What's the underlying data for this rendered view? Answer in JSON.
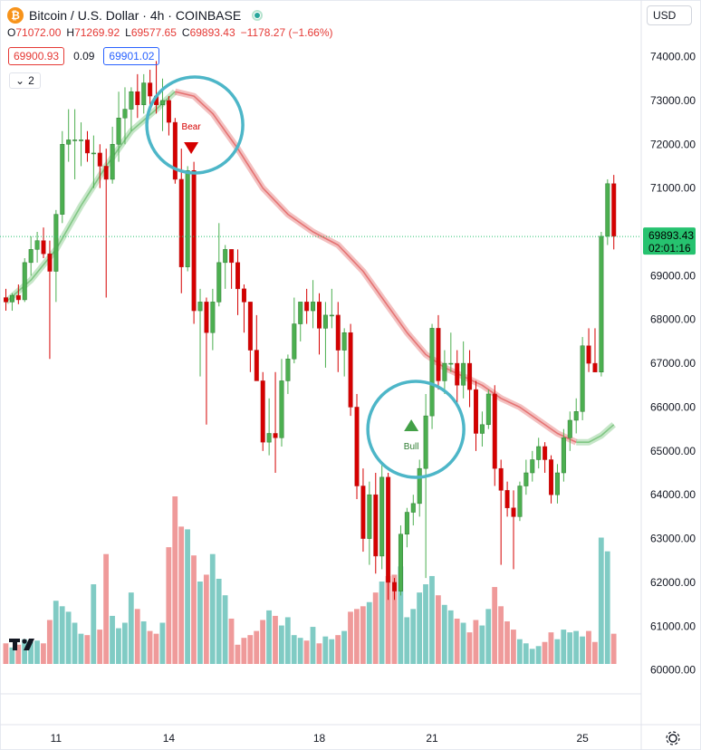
{
  "header": {
    "symbol_title": "Bitcoin / U.S. Dollar · 4h · COINBASE",
    "logo_glyph": "₿"
  },
  "ohlc": {
    "open_label": "O",
    "open": "71072.00",
    "high_label": "H",
    "high": "71269.92",
    "low_label": "L",
    "low": "69577.65",
    "close_label": "C",
    "close": "69893.43",
    "change": "−1178.27 (−1.66%)"
  },
  "quote": {
    "sell": "69900.93",
    "spread": "0.09",
    "buy": "69901.02"
  },
  "indicators_toggle": {
    "chevron": "⌄",
    "count": "2"
  },
  "currency_select": {
    "selected": "USD",
    "arrow": "▾"
  },
  "price_badge": {
    "price": "69893.43",
    "countdown": "02:01:16"
  },
  "signals": {
    "bear_label": "Bear",
    "bull_label": "Bull"
  },
  "colors": {
    "up": "#4caf50",
    "down": "#d50000",
    "up_volume": "#80cbc4",
    "down_volume": "#ef9a9a",
    "ma_bull": "#81c784",
    "ma_bear": "#e57373",
    "circle": "#4db6c8",
    "last_price": "#26c26f"
  },
  "chart_data": {
    "type": "candlestick",
    "y_ticks": [
      "74000.00",
      "73000.00",
      "72000.00",
      "71000.00",
      "70000.00",
      "69000.00",
      "68000.00",
      "67000.00",
      "66000.00",
      "65000.00",
      "64000.00",
      "63000.00",
      "62000.00",
      "61000.00",
      "60000.00"
    ],
    "ylim": [
      59600,
      74900
    ],
    "x_ticks": [
      {
        "label": "11",
        "index": 8
      },
      {
        "label": "14",
        "index": 26
      },
      {
        "label": "18",
        "index": 50
      },
      {
        "label": "21",
        "index": 68
      },
      {
        "label": "25",
        "index": 92
      }
    ],
    "candles": [
      {
        "o": 68500,
        "h": 68700,
        "l": 68200,
        "c": 68400,
        "v": 150
      },
      {
        "o": 68400,
        "h": 68600,
        "l": 68200,
        "c": 68550,
        "v": 120
      },
      {
        "o": 68550,
        "h": 68800,
        "l": 68350,
        "c": 68450,
        "v": 140
      },
      {
        "o": 68450,
        "h": 69400,
        "l": 68400,
        "c": 69300,
        "v": 180
      },
      {
        "o": 69300,
        "h": 69900,
        "l": 69000,
        "c": 69600,
        "v": 160
      },
      {
        "o": 69600,
        "h": 70000,
        "l": 69300,
        "c": 69800,
        "v": 170
      },
      {
        "o": 69800,
        "h": 70100,
        "l": 69400,
        "c": 69500,
        "v": 150
      },
      {
        "o": 69500,
        "h": 69800,
        "l": 67100,
        "c": 69100,
        "v": 320
      },
      {
        "o": 69100,
        "h": 70500,
        "l": 68400,
        "c": 70400,
        "v": 460
      },
      {
        "o": 70400,
        "h": 72300,
        "l": 70200,
        "c": 72000,
        "v": 420
      },
      {
        "o": 72000,
        "h": 72800,
        "l": 71600,
        "c": 72100,
        "v": 380
      },
      {
        "o": 72100,
        "h": 72800,
        "l": 71200,
        "c": 72100,
        "v": 300
      },
      {
        "o": 72100,
        "h": 72500,
        "l": 71500,
        "c": 72100,
        "v": 220
      },
      {
        "o": 72100,
        "h": 72300,
        "l": 71600,
        "c": 71800,
        "v": 210
      },
      {
        "o": 71800,
        "h": 72200,
        "l": 71000,
        "c": 71800,
        "v": 580
      },
      {
        "o": 71800,
        "h": 72000,
        "l": 71000,
        "c": 71500,
        "v": 250
      },
      {
        "o": 71500,
        "h": 71900,
        "l": 68500,
        "c": 71200,
        "v": 800
      },
      {
        "o": 71200,
        "h": 72400,
        "l": 71100,
        "c": 72000,
        "v": 350
      },
      {
        "o": 72000,
        "h": 73200,
        "l": 71600,
        "c": 72600,
        "v": 260
      },
      {
        "o": 72600,
        "h": 73300,
        "l": 72000,
        "c": 72800,
        "v": 300
      },
      {
        "o": 72800,
        "h": 73300,
        "l": 72300,
        "c": 73200,
        "v": 520
      },
      {
        "o": 73200,
        "h": 73600,
        "l": 72600,
        "c": 72900,
        "v": 400
      },
      {
        "o": 72900,
        "h": 73600,
        "l": 72700,
        "c": 73400,
        "v": 310
      },
      {
        "o": 73400,
        "h": 73700,
        "l": 72900,
        "c": 73100,
        "v": 240
      },
      {
        "o": 73100,
        "h": 73900,
        "l": 72700,
        "c": 72900,
        "v": 220
      },
      {
        "o": 72900,
        "h": 73500,
        "l": 72300,
        "c": 73000,
        "v": 300
      },
      {
        "o": 73000,
        "h": 73100,
        "l": 72200,
        "c": 72500,
        "v": 850
      },
      {
        "o": 72500,
        "h": 72600,
        "l": 71100,
        "c": 71200,
        "v": 1220
      },
      {
        "o": 71200,
        "h": 71900,
        "l": 68600,
        "c": 69200,
        "v": 1000
      },
      {
        "o": 69200,
        "h": 71500,
        "l": 69100,
        "c": 71400,
        "v": 980
      },
      {
        "o": 71400,
        "h": 71600,
        "l": 67900,
        "c": 68200,
        "v": 790
      },
      {
        "o": 68200,
        "h": 68700,
        "l": 66700,
        "c": 68400,
        "v": 600
      },
      {
        "o": 68400,
        "h": 68500,
        "l": 65600,
        "c": 67700,
        "v": 650
      },
      {
        "o": 67700,
        "h": 68700,
        "l": 67300,
        "c": 68400,
        "v": 800
      },
      {
        "o": 68400,
        "h": 70200,
        "l": 68300,
        "c": 69300,
        "v": 620
      },
      {
        "o": 69300,
        "h": 69700,
        "l": 68700,
        "c": 69600,
        "v": 500
      },
      {
        "o": 69600,
        "h": 69600,
        "l": 68700,
        "c": 69300,
        "v": 330
      },
      {
        "o": 69300,
        "h": 69600,
        "l": 68100,
        "c": 68700,
        "v": 140
      },
      {
        "o": 68700,
        "h": 68800,
        "l": 67700,
        "c": 68400,
        "v": 190
      },
      {
        "o": 68400,
        "h": 68400,
        "l": 66800,
        "c": 67300,
        "v": 210
      },
      {
        "o": 67300,
        "h": 68100,
        "l": 66700,
        "c": 66600,
        "v": 240
      },
      {
        "o": 66600,
        "h": 66800,
        "l": 65000,
        "c": 65200,
        "v": 320
      },
      {
        "o": 65200,
        "h": 66200,
        "l": 64900,
        "c": 65400,
        "v": 390
      },
      {
        "o": 65400,
        "h": 66800,
        "l": 64500,
        "c": 65300,
        "v": 350
      },
      {
        "o": 65300,
        "h": 67100,
        "l": 65100,
        "c": 66600,
        "v": 280
      },
      {
        "o": 66600,
        "h": 67200,
        "l": 66300,
        "c": 67100,
        "v": 340
      },
      {
        "o": 67100,
        "h": 68500,
        "l": 67000,
        "c": 67900,
        "v": 210
      },
      {
        "o": 67900,
        "h": 68300,
        "l": 67500,
        "c": 68400,
        "v": 190
      },
      {
        "o": 68400,
        "h": 68700,
        "l": 67900,
        "c": 68200,
        "v": 170
      },
      {
        "o": 68200,
        "h": 68900,
        "l": 67800,
        "c": 68400,
        "v": 270
      },
      {
        "o": 68400,
        "h": 68600,
        "l": 67200,
        "c": 67800,
        "v": 150
      },
      {
        "o": 67800,
        "h": 68400,
        "l": 66900,
        "c": 68100,
        "v": 200
      },
      {
        "o": 68100,
        "h": 68700,
        "l": 67800,
        "c": 68100,
        "v": 180
      },
      {
        "o": 68100,
        "h": 68400,
        "l": 66800,
        "c": 67300,
        "v": 210
      },
      {
        "o": 67300,
        "h": 67800,
        "l": 66700,
        "c": 67700,
        "v": 240
      },
      {
        "o": 67700,
        "h": 67900,
        "l": 65800,
        "c": 66000,
        "v": 380
      },
      {
        "o": 66000,
        "h": 66300,
        "l": 63900,
        "c": 64200,
        "v": 400
      },
      {
        "o": 64200,
        "h": 64600,
        "l": 62700,
        "c": 63000,
        "v": 420
      },
      {
        "o": 63000,
        "h": 64300,
        "l": 62400,
        "c": 64000,
        "v": 450
      },
      {
        "o": 64000,
        "h": 64500,
        "l": 62200,
        "c": 62600,
        "v": 520
      },
      {
        "o": 62600,
        "h": 64700,
        "l": 62300,
        "c": 64400,
        "v": 600
      },
      {
        "o": 64400,
        "h": 64500,
        "l": 61600,
        "c": 62000,
        "v": 640
      },
      {
        "o": 62000,
        "h": 62100,
        "l": 61600,
        "c": 61800,
        "v": 650
      },
      {
        "o": 61800,
        "h": 63300,
        "l": 61700,
        "c": 63100,
        "v": 710
      },
      {
        "o": 63100,
        "h": 63700,
        "l": 62800,
        "c": 63600,
        "v": 340
      },
      {
        "o": 63600,
        "h": 64000,
        "l": 63300,
        "c": 63800,
        "v": 400
      },
      {
        "o": 63800,
        "h": 64800,
        "l": 63500,
        "c": 64600,
        "v": 520
      },
      {
        "o": 64600,
        "h": 66300,
        "l": 62100,
        "c": 65800,
        "v": 580
      },
      {
        "o": 65800,
        "h": 67900,
        "l": 65500,
        "c": 67800,
        "v": 640
      },
      {
        "o": 67800,
        "h": 68100,
        "l": 66400,
        "c": 66600,
        "v": 500
      },
      {
        "o": 66600,
        "h": 67300,
        "l": 66300,
        "c": 67000,
        "v": 430
      },
      {
        "o": 67000,
        "h": 67700,
        "l": 66800,
        "c": 67000,
        "v": 390
      },
      {
        "o": 67000,
        "h": 67300,
        "l": 66100,
        "c": 66500,
        "v": 330
      },
      {
        "o": 66500,
        "h": 67500,
        "l": 66200,
        "c": 67000,
        "v": 300
      },
      {
        "o": 67000,
        "h": 67300,
        "l": 66000,
        "c": 66400,
        "v": 230
      },
      {
        "o": 66400,
        "h": 66600,
        "l": 65000,
        "c": 65400,
        "v": 320
      },
      {
        "o": 65400,
        "h": 65900,
        "l": 65100,
        "c": 65600,
        "v": 280
      },
      {
        "o": 65600,
        "h": 66400,
        "l": 65500,
        "c": 66300,
        "v": 400
      },
      {
        "o": 66300,
        "h": 66500,
        "l": 64200,
        "c": 64600,
        "v": 560
      },
      {
        "o": 64600,
        "h": 64800,
        "l": 62400,
        "c": 64100,
        "v": 420
      },
      {
        "o": 64100,
        "h": 64300,
        "l": 63500,
        "c": 63700,
        "v": 310
      },
      {
        "o": 63700,
        "h": 64100,
        "l": 62300,
        "c": 63500,
        "v": 250
      },
      {
        "o": 63500,
        "h": 64300,
        "l": 63400,
        "c": 64200,
        "v": 180
      },
      {
        "o": 64200,
        "h": 64800,
        "l": 64000,
        "c": 64500,
        "v": 150
      },
      {
        "o": 64500,
        "h": 65000,
        "l": 64300,
        "c": 64800,
        "v": 110
      },
      {
        "o": 64800,
        "h": 65300,
        "l": 64600,
        "c": 65100,
        "v": 130
      },
      {
        "o": 65100,
        "h": 65200,
        "l": 64500,
        "c": 64800,
        "v": 160
      },
      {
        "o": 64800,
        "h": 64900,
        "l": 63800,
        "c": 64000,
        "v": 230
      },
      {
        "o": 64000,
        "h": 64700,
        "l": 63800,
        "c": 64500,
        "v": 180
      },
      {
        "o": 64500,
        "h": 65500,
        "l": 64300,
        "c": 65300,
        "v": 250
      },
      {
        "o": 65300,
        "h": 65900,
        "l": 65000,
        "c": 65700,
        "v": 230
      },
      {
        "o": 65700,
        "h": 66200,
        "l": 65400,
        "c": 65900,
        "v": 240
      },
      {
        "o": 65900,
        "h": 67600,
        "l": 65700,
        "c": 67400,
        "v": 200
      },
      {
        "o": 67400,
        "h": 67800,
        "l": 66800,
        "c": 67000,
        "v": 240
      },
      {
        "o": 67000,
        "h": 67800,
        "l": 66800,
        "c": 66800,
        "v": 160
      },
      {
        "o": 66800,
        "h": 70000,
        "l": 66700,
        "c": 69900,
        "v": 920
      },
      {
        "o": 69900,
        "h": 71200,
        "l": 69700,
        "c": 71100,
        "v": 820
      },
      {
        "o": 71100,
        "h": 71300,
        "l": 69600,
        "c": 69900,
        "v": 220
      }
    ],
    "ma_points": [
      {
        "i": 0,
        "v": 68400
      },
      {
        "i": 4,
        "v": 68900
      },
      {
        "i": 8,
        "v": 69600
      },
      {
        "i": 12,
        "v": 70600
      },
      {
        "i": 16,
        "v": 71500
      },
      {
        "i": 20,
        "v": 72300
      },
      {
        "i": 24,
        "v": 72800
      },
      {
        "i": 27,
        "v": 73200
      },
      {
        "i": 30,
        "v": 73100
      },
      {
        "i": 33,
        "v": 72700
      },
      {
        "i": 37,
        "v": 71900
      },
      {
        "i": 41,
        "v": 71000
      },
      {
        "i": 45,
        "v": 70400
      },
      {
        "i": 49,
        "v": 70000
      },
      {
        "i": 53,
        "v": 69700
      },
      {
        "i": 57,
        "v": 69100
      },
      {
        "i": 61,
        "v": 68300
      },
      {
        "i": 64,
        "v": 67700
      },
      {
        "i": 67,
        "v": 67200
      },
      {
        "i": 70,
        "v": 66900
      },
      {
        "i": 73,
        "v": 66700
      },
      {
        "i": 76,
        "v": 66500
      },
      {
        "i": 79,
        "v": 66200
      },
      {
        "i": 82,
        "v": 66000
      },
      {
        "i": 85,
        "v": 65700
      },
      {
        "i": 88,
        "v": 65400
      },
      {
        "i": 91,
        "v": 65200
      },
      {
        "i": 93,
        "v": 65200
      },
      {
        "i": 95,
        "v": 65350
      },
      {
        "i": 97,
        "v": 65600
      }
    ],
    "bear_signal_index": 30,
    "bull_signal_index": 67,
    "last_price": 69893.43
  }
}
